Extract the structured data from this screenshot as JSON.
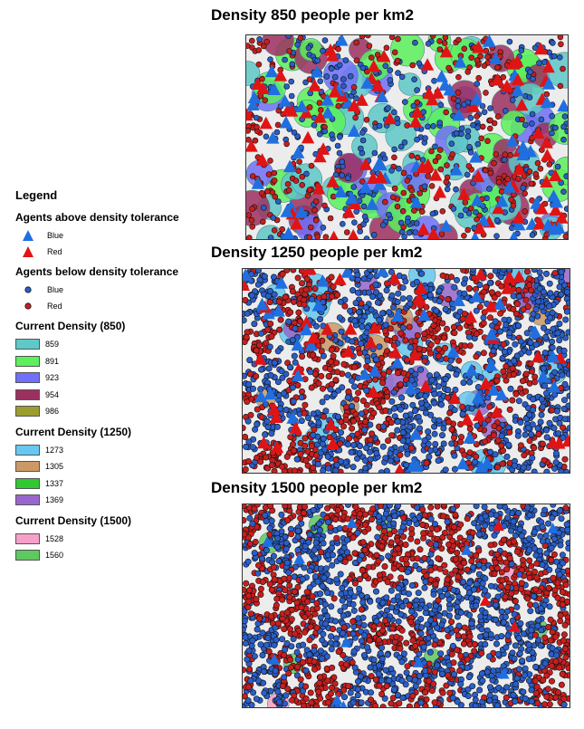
{
  "maps": [
    {
      "title": "Density 850 people per km2"
    },
    {
      "title": "Density 1250 people per km2"
    },
    {
      "title": "Density 1500 people per km2"
    }
  ],
  "legend": {
    "title": "Legend",
    "above": {
      "heading": "Agents above density tolerance",
      "items": [
        {
          "label": "Blue",
          "color": "#1f6fe0",
          "icon": "triangle-blue-icon"
        },
        {
          "label": "Red",
          "color": "#e01414",
          "icon": "triangle-red-icon"
        }
      ]
    },
    "below": {
      "heading": "Agents below density tolerance",
      "items": [
        {
          "label": "Blue",
          "color": "#2a5ec8",
          "icon": "dot-blue-icon"
        },
        {
          "label": "Red",
          "color": "#c81e1e",
          "icon": "dot-red-icon"
        }
      ]
    },
    "density_groups": [
      {
        "heading": "Current Density (850)",
        "classes": [
          {
            "label": "859",
            "color": "#5fc8c8"
          },
          {
            "label": "891",
            "color": "#5cf05c"
          },
          {
            "label": "923",
            "color": "#7070f8"
          },
          {
            "label": "954",
            "color": "#9c3060"
          },
          {
            "label": "986",
            "color": "#9c9c30"
          }
        ]
      },
      {
        "heading": "Current Density (1250)",
        "classes": [
          {
            "label": "1273",
            "color": "#66c8f0"
          },
          {
            "label": "1305",
            "color": "#cc9966"
          },
          {
            "label": "1337",
            "color": "#30c830"
          },
          {
            "label": "1369",
            "color": "#9966cc"
          }
        ]
      },
      {
        "heading": "Current Density (1500)",
        "classes": [
          {
            "label": "1528",
            "color": "#f5a0c8"
          },
          {
            "label": "1560",
            "color": "#60c860"
          }
        ]
      }
    ]
  }
}
